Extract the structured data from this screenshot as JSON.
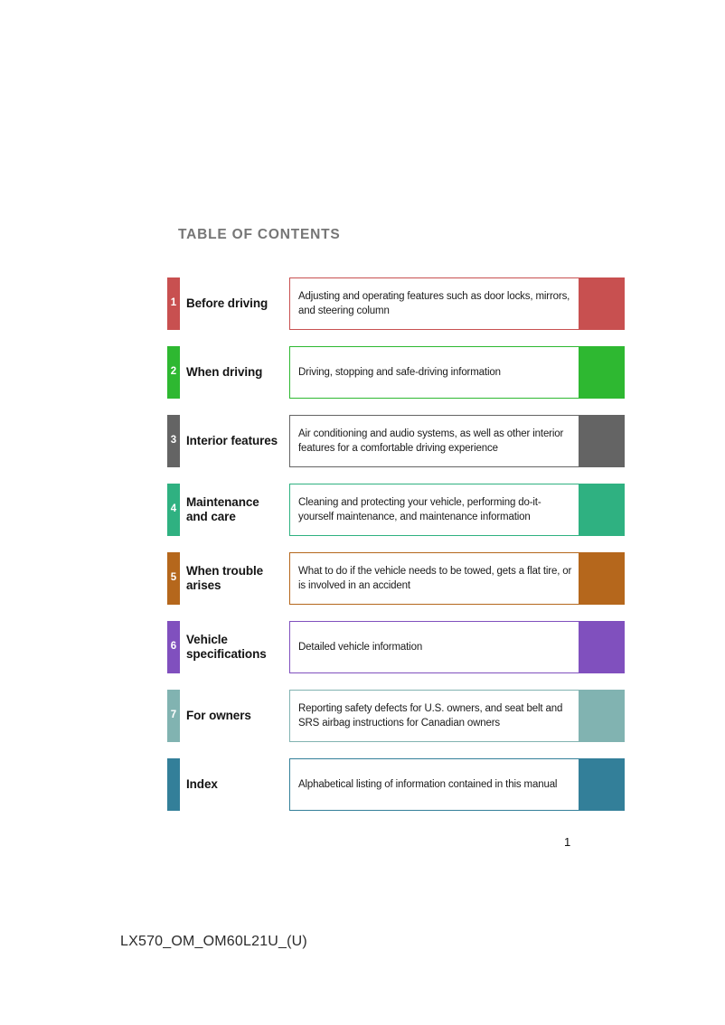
{
  "page": {
    "title": "TABLE OF CONTENTS",
    "page_number": "1",
    "footer_code": "LX570_OM_OM60L21U_(U)"
  },
  "toc": {
    "rows": [
      {
        "number": "1",
        "title": "Before driving",
        "description": "Adjusting and operating features such as door locks, mirrors, and steering column",
        "color": "#c85050"
      },
      {
        "number": "2",
        "title": "When driving",
        "description": "Driving, stopping and safe-driving information",
        "color": "#2eb831"
      },
      {
        "number": "3",
        "title": "Interior features",
        "description": "Air conditioning and audio systems, as well as other interior features for a comfortable driving experience",
        "color": "#646464"
      },
      {
        "number": "4",
        "title": "Maintenance\nand care",
        "description": "Cleaning and protecting your vehicle, performing do-it-yourself maintenance, and maintenance information",
        "color": "#2fb181"
      },
      {
        "number": "5",
        "title": "When trouble\narises",
        "description": "What to do if the vehicle needs to be towed, gets a flat tire, or is involved in an accident",
        "color": "#b5671c"
      },
      {
        "number": "6",
        "title": "Vehicle\nspecifications",
        "description": "Detailed vehicle information",
        "color": "#8050be"
      },
      {
        "number": "7",
        "title": "For owners",
        "description": "Reporting safety defects for U.S. owners, and seat belt and SRS airbag instructions for Canadian owners",
        "color": "#81b3b1"
      },
      {
        "number": "",
        "title": "Index",
        "description": "Alphabetical listing of information contained in this manual",
        "color": "#337f99"
      }
    ]
  }
}
